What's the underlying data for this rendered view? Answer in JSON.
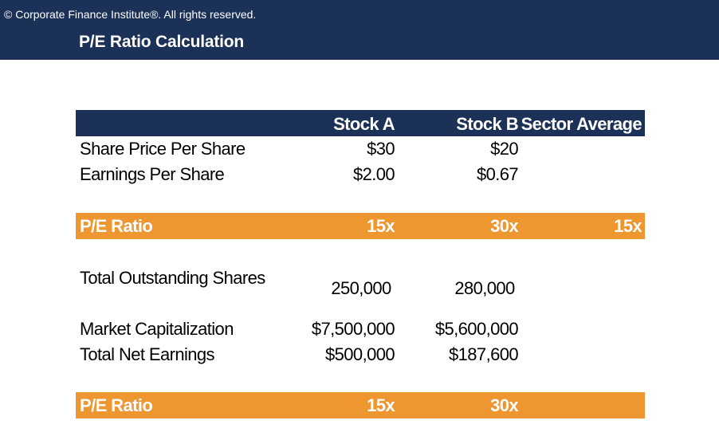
{
  "header": {
    "copyright": "© Corporate Finance Institute®. All rights reserved.",
    "title": "P/E Ratio Calculation"
  },
  "table": {
    "columns": [
      "Stock A",
      "Stock B",
      "Sector Average"
    ],
    "rows": [
      {
        "label": "Share Price Per Share",
        "a": "$30",
        "b": "$20",
        "s": ""
      },
      {
        "label": "Earnings Per Share",
        "a": "$2.00",
        "b": "$0.67",
        "s": ""
      }
    ],
    "pe1": {
      "label": "P/E Ratio",
      "a": "15x",
      "b": "30x",
      "s": "15x"
    },
    "shares": {
      "label": "Total Outstanding Shares",
      "a": "250,000",
      "b": "280,000"
    },
    "rows2": [
      {
        "label": "Market Capitalization",
        "a": "$7,500,000",
        "b": "$5,600,000"
      },
      {
        "label": "Total Net Earnings",
        "a": "$500,000",
        "b": "$187,600"
      }
    ],
    "pe2": {
      "label": "P/E Ratio",
      "a": "15x",
      "b": "30x",
      "s": ""
    }
  },
  "colors": {
    "navy": "#1b3157",
    "orange": "#ee9630"
  }
}
